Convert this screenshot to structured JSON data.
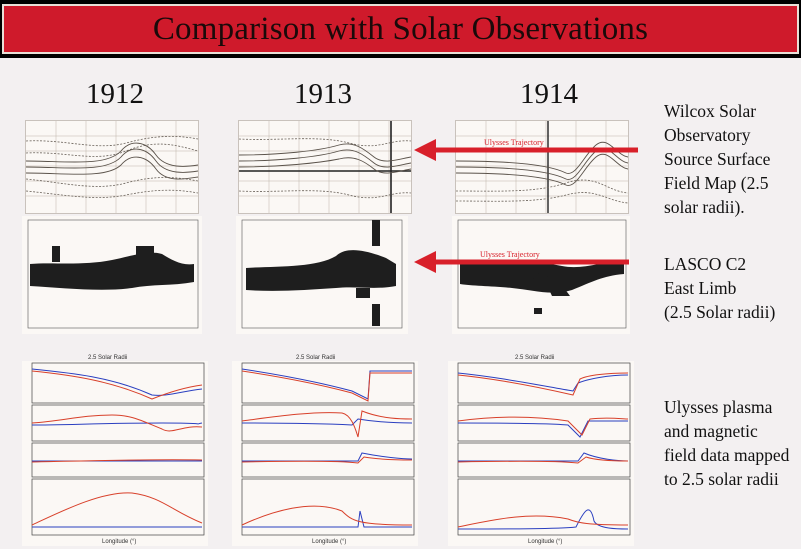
{
  "title": "Comparison with Solar Observations",
  "columns": [
    {
      "year": "1912"
    },
    {
      "year": "1913"
    },
    {
      "year": "1914"
    }
  ],
  "rows": [
    {
      "lines": [
        "Wilcox Solar",
        "Observatory",
        "Source Surface",
        "Field Map (2.5",
        "solar radii)."
      ],
      "arrow_label": "Ulysses Trajectory"
    },
    {
      "lines": [
        "LASCO C2",
        "East Limb",
        "(2.5 Solar radii)"
      ],
      "arrow_label": "Ulysses Trajectory"
    },
    {
      "lines": [
        "Ulysses plasma",
        "and magnetic",
        "field data mapped",
        "to 2.5 solar radii"
      ]
    }
  ],
  "plot_labels": {
    "radii": "2.5 Solar Radii",
    "longitude": "Longitude (°)"
  },
  "colors": {
    "title_bg": "#cf1a2b",
    "arrow": "#d8202a",
    "blue": "#2a3fc0",
    "red": "#d8402a"
  }
}
